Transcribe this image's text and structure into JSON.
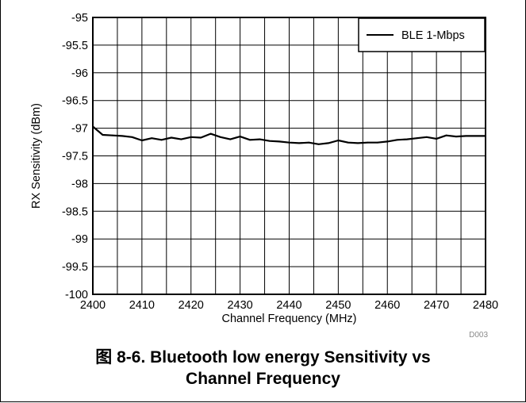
{
  "chart_data": {
    "type": "line",
    "xlabel": "Channel Frequency (MHz)",
    "ylabel": "RX Sensitivity (dBm)",
    "xlim": [
      2400,
      2480
    ],
    "ylim": [
      -100,
      -95
    ],
    "x_ticks": [
      "2400",
      "2410",
      "2420",
      "2430",
      "2440",
      "2450",
      "2460",
      "2470",
      "2480"
    ],
    "y_ticks": [
      "-95",
      "-95.5",
      "-96",
      "-96.5",
      "-97",
      "-97.5",
      "-98",
      "-98.5",
      "-99",
      "-99.5",
      "-100"
    ],
    "grid": true,
    "legend_position": "top-right",
    "series": [
      {
        "name": "BLE 1-Mbps",
        "color": "#000000",
        "x": [
          2400,
          2402,
          2404,
          2406,
          2408,
          2410,
          2412,
          2414,
          2416,
          2418,
          2420,
          2422,
          2424,
          2426,
          2428,
          2430,
          2432,
          2434,
          2436,
          2438,
          2440,
          2442,
          2444,
          2446,
          2448,
          2450,
          2452,
          2454,
          2456,
          2458,
          2460,
          2462,
          2464,
          2466,
          2468,
          2470,
          2472,
          2474,
          2476,
          2478,
          2480
        ],
        "y": [
          -96.97,
          -97.12,
          -97.13,
          -97.14,
          -97.16,
          -97.22,
          -97.18,
          -97.21,
          -97.17,
          -97.2,
          -97.16,
          -97.17,
          -97.1,
          -97.16,
          -97.2,
          -97.15,
          -97.21,
          -97.2,
          -97.23,
          -97.24,
          -97.26,
          -97.27,
          -97.26,
          -97.29,
          -97.27,
          -97.22,
          -97.26,
          -97.27,
          -97.26,
          -97.26,
          -97.24,
          -97.21,
          -97.2,
          -97.18,
          -97.16,
          -97.19,
          -97.13,
          -97.15,
          -97.14,
          -97.14,
          -97.14
        ]
      }
    ]
  },
  "figure_code": "D003",
  "caption": {
    "line1": "图 8-6. Bluetooth low energy Sensitivity vs",
    "line2": "Channel Frequency"
  }
}
